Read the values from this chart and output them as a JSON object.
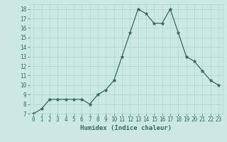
{
  "xlabel": "Humidex (Indice chaleur)",
  "x_values": [
    0,
    1,
    2,
    3,
    4,
    5,
    6,
    7,
    8,
    9,
    10,
    11,
    12,
    13,
    14,
    15,
    16,
    17,
    18,
    19,
    20,
    21,
    22,
    23
  ],
  "y_values": [
    7,
    7.5,
    8.5,
    8.5,
    8.5,
    8.5,
    8.5,
    8,
    9,
    9.5,
    10.5,
    13,
    15.5,
    18,
    17.5,
    16.5,
    16.5,
    18,
    15.5,
    13,
    12.5,
    11.5,
    10.5,
    10
  ],
  "ylim": [
    7,
    18.5
  ],
  "yticks": [
    7,
    8,
    9,
    10,
    11,
    12,
    13,
    14,
    15,
    16,
    17,
    18
  ],
  "xlim": [
    -0.5,
    23.5
  ],
  "xticks": [
    0,
    1,
    2,
    3,
    4,
    5,
    6,
    7,
    8,
    9,
    10,
    11,
    12,
    13,
    14,
    15,
    16,
    17,
    18,
    19,
    20,
    21,
    22,
    23
  ],
  "line_color": "#2e6b5e",
  "marker": "*",
  "marker_size": 3.5,
  "bg_color": "#cce8e4",
  "grid_color": "#b0d4ce",
  "axis_label_color": "#2e6b5e",
  "tick_label_color": "#2e6b5e",
  "xlabel_fontsize": 6.5,
  "tick_fontsize": 5.5
}
